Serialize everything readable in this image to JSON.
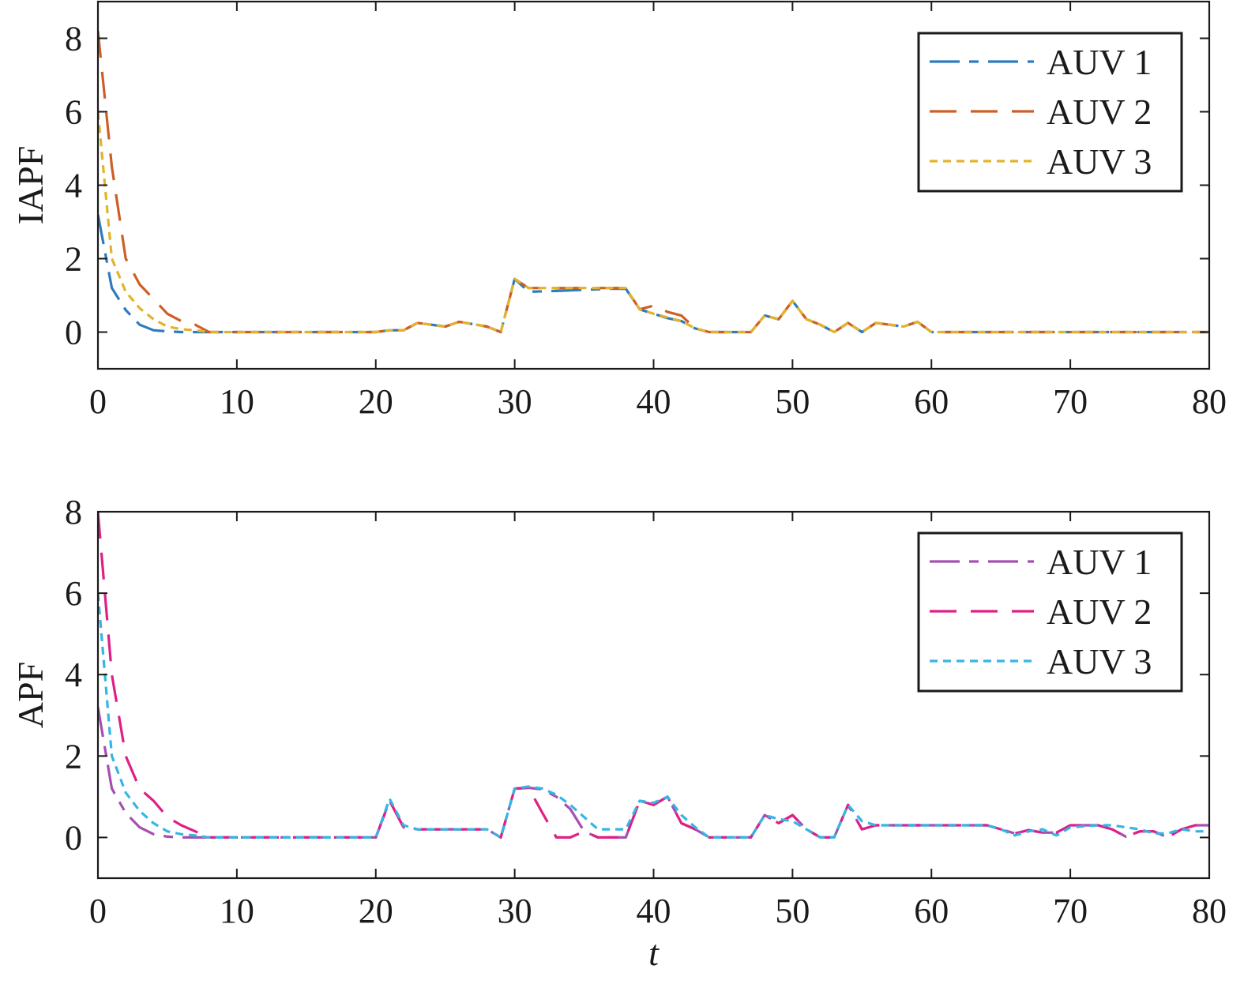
{
  "chart_data": [
    {
      "type": "line",
      "title": "",
      "xlabel": "",
      "ylabel": "IAPF",
      "xlim": [
        0,
        80
      ],
      "ylim": [
        -1,
        9
      ],
      "xticks": [
        0,
        10,
        20,
        30,
        40,
        50,
        60,
        70,
        80
      ],
      "yticks": [
        0,
        2,
        4,
        6,
        8
      ],
      "grid": false,
      "legend_position": "top-right",
      "series": [
        {
          "name": "AUV 1",
          "color": "#2e7bbf",
          "dash": "long-dash-short-dash",
          "x": [
            0,
            1,
            2,
            3,
            4,
            5,
            6,
            7,
            8,
            10,
            15,
            20,
            21,
            22,
            23,
            25,
            26,
            28,
            29,
            30,
            31,
            33,
            35,
            37,
            38,
            39,
            40,
            41,
            42,
            43,
            44,
            45,
            47,
            48,
            49,
            50,
            51,
            52,
            53,
            54,
            55,
            56,
            57,
            58,
            59,
            60,
            65,
            70,
            75,
            80
          ],
          "y": [
            3.2,
            1.2,
            0.6,
            0.2,
            0.05,
            0.02,
            0.0,
            0.0,
            0.0,
            0.0,
            0.0,
            0.0,
            0.05,
            0.05,
            0.25,
            0.15,
            0.28,
            0.15,
            0.0,
            1.45,
            1.1,
            1.12,
            1.15,
            1.18,
            1.18,
            0.62,
            0.5,
            0.38,
            0.3,
            0.1,
            0.0,
            0.0,
            0.0,
            0.45,
            0.35,
            0.85,
            0.35,
            0.2,
            0.0,
            0.25,
            0.0,
            0.25,
            0.2,
            0.15,
            0.28,
            0.0,
            0.0,
            0.0,
            0.0,
            0.0
          ]
        },
        {
          "name": "AUV 2",
          "color": "#cc5f28",
          "dash": "long-dash",
          "x": [
            0,
            1,
            2,
            3,
            4,
            5,
            6,
            7,
            8,
            10,
            15,
            20,
            21,
            22,
            23,
            25,
            26,
            28,
            29,
            30,
            31,
            33,
            35,
            37,
            38,
            39,
            40,
            41,
            42,
            43,
            44,
            45,
            47,
            48,
            49,
            50,
            51,
            52,
            53,
            54,
            55,
            56,
            57,
            58,
            59,
            60,
            65,
            70,
            75,
            80
          ],
          "y": [
            8.2,
            4.5,
            2.0,
            1.3,
            0.9,
            0.5,
            0.3,
            0.2,
            0.0,
            0.0,
            0.0,
            0.0,
            0.05,
            0.05,
            0.25,
            0.15,
            0.28,
            0.15,
            0.0,
            1.45,
            1.2,
            1.2,
            1.2,
            1.2,
            1.2,
            0.62,
            0.72,
            0.55,
            0.45,
            0.1,
            0.0,
            0.0,
            0.0,
            0.45,
            0.35,
            0.85,
            0.35,
            0.2,
            0.0,
            0.25,
            0.0,
            0.25,
            0.2,
            0.15,
            0.28,
            0.0,
            0.0,
            0.0,
            0.0,
            0.0
          ]
        },
        {
          "name": "AUV 3",
          "color": "#e3b32b",
          "dash": "short-dash",
          "x": [
            0,
            1,
            2,
            3,
            4,
            5,
            6,
            7,
            8,
            10,
            15,
            20,
            21,
            22,
            23,
            25,
            26,
            28,
            29,
            30,
            31,
            33,
            35,
            37,
            38,
            39,
            40,
            41,
            42,
            43,
            44,
            45,
            47,
            48,
            49,
            50,
            51,
            52,
            53,
            54,
            55,
            56,
            57,
            58,
            59,
            60,
            65,
            70,
            75,
            80
          ],
          "y": [
            6.0,
            2.0,
            1.1,
            0.65,
            0.35,
            0.15,
            0.08,
            0.05,
            0.0,
            0.0,
            0.0,
            0.0,
            0.05,
            0.05,
            0.25,
            0.15,
            0.28,
            0.15,
            0.0,
            1.45,
            1.2,
            1.2,
            1.2,
            1.2,
            1.2,
            0.62,
            0.5,
            0.4,
            0.3,
            0.1,
            0.0,
            0.0,
            0.0,
            0.45,
            0.35,
            0.85,
            0.35,
            0.2,
            0.0,
            0.25,
            0.0,
            0.25,
            0.2,
            0.15,
            0.28,
            0.0,
            0.0,
            0.0,
            0.0,
            0.0
          ]
        }
      ]
    },
    {
      "type": "line",
      "title": "",
      "xlabel": "t",
      "ylabel": "APF",
      "xlim": [
        0,
        80
      ],
      "ylim": [
        -1,
        8
      ],
      "xticks": [
        0,
        10,
        20,
        30,
        40,
        50,
        60,
        70,
        80
      ],
      "yticks": [
        0,
        2,
        4,
        6,
        8
      ],
      "grid": false,
      "legend_position": "top-right",
      "series": [
        {
          "name": "AUV 1",
          "color": "#a64fb0",
          "dash": "long-dash-short-dash",
          "x": [
            0,
            1,
            2,
            3,
            4,
            5,
            6,
            7,
            8,
            10,
            15,
            20,
            21,
            22,
            23,
            25,
            28,
            29,
            30,
            31,
            32,
            33,
            34,
            35,
            36,
            38,
            39,
            40,
            41,
            42,
            43,
            44,
            45,
            47,
            48,
            49,
            50,
            51,
            52,
            53,
            54,
            55,
            56,
            60,
            64,
            65,
            66,
            67,
            68,
            69,
            70,
            72,
            73,
            74,
            75,
            76,
            77,
            78,
            79,
            80
          ],
          "y": [
            3.2,
            1.2,
            0.6,
            0.25,
            0.08,
            0.02,
            0.0,
            0.0,
            0.0,
            0.0,
            0.0,
            0.0,
            0.9,
            0.25,
            0.2,
            0.2,
            0.2,
            0.0,
            1.2,
            1.22,
            1.18,
            1.0,
            0.7,
            0.15,
            0.0,
            0.0,
            0.9,
            0.8,
            1.0,
            0.35,
            0.2,
            0.0,
            0.0,
            0.0,
            0.55,
            0.35,
            0.55,
            0.2,
            0.0,
            0.0,
            0.8,
            0.2,
            0.3,
            0.3,
            0.3,
            0.2,
            0.1,
            0.18,
            0.12,
            0.12,
            0.3,
            0.3,
            0.2,
            0.02,
            0.15,
            0.15,
            0.0,
            0.2,
            0.3,
            0.3
          ]
        },
        {
          "name": "AUV 2",
          "color": "#df1f86",
          "dash": "long-dash",
          "x": [
            0,
            1,
            2,
            3,
            4,
            5,
            6,
            7,
            8,
            10,
            15,
            20,
            21,
            22,
            23,
            25,
            28,
            29,
            30,
            31,
            32,
            33,
            34,
            35,
            36,
            38,
            39,
            40,
            41,
            42,
            43,
            44,
            45,
            47,
            48,
            49,
            50,
            51,
            52,
            53,
            54,
            55,
            56,
            60,
            64,
            65,
            66,
            67,
            68,
            69,
            70,
            72,
            73,
            74,
            75,
            76,
            77,
            78,
            79,
            80
          ],
          "y": [
            8.0,
            4.0,
            2.0,
            1.2,
            0.9,
            0.5,
            0.3,
            0.15,
            0.0,
            0.0,
            0.0,
            0.0,
            0.9,
            0.25,
            0.2,
            0.2,
            0.2,
            0.0,
            1.2,
            1.22,
            0.6,
            0.0,
            0.0,
            0.15,
            0.0,
            0.0,
            0.9,
            0.8,
            1.0,
            0.35,
            0.2,
            0.0,
            0.0,
            0.0,
            0.55,
            0.35,
            0.55,
            0.2,
            0.0,
            0.0,
            0.8,
            0.2,
            0.3,
            0.3,
            0.3,
            0.2,
            0.1,
            0.18,
            0.12,
            0.12,
            0.3,
            0.3,
            0.2,
            0.02,
            0.15,
            0.15,
            0.0,
            0.2,
            0.3,
            0.3
          ]
        },
        {
          "name": "AUV 3",
          "color": "#35b5e5",
          "dash": "short-dash",
          "x": [
            0,
            1,
            2,
            3,
            4,
            5,
            6,
            7,
            8,
            10,
            15,
            20,
            21,
            22,
            23,
            25,
            28,
            29,
            30,
            31,
            32,
            33,
            34,
            35,
            36,
            38,
            39,
            40,
            41,
            42,
            43,
            44,
            45,
            47,
            48,
            49,
            50,
            51,
            52,
            53,
            54,
            55,
            56,
            60,
            64,
            65,
            66,
            67,
            68,
            69,
            70,
            72,
            73,
            74,
            75,
            76,
            77,
            78,
            79,
            80
          ],
          "y": [
            6.0,
            2.0,
            1.1,
            0.65,
            0.35,
            0.15,
            0.08,
            0.05,
            0.0,
            0.0,
            0.0,
            0.0,
            0.95,
            0.3,
            0.2,
            0.2,
            0.2,
            0.0,
            1.2,
            1.25,
            1.2,
            1.05,
            0.8,
            0.5,
            0.2,
            0.2,
            0.9,
            0.85,
            1.0,
            0.55,
            0.25,
            0.0,
            0.0,
            0.0,
            0.55,
            0.45,
            0.4,
            0.2,
            0.0,
            0.0,
            0.8,
            0.4,
            0.3,
            0.3,
            0.3,
            0.2,
            0.05,
            0.15,
            0.2,
            0.05,
            0.25,
            0.3,
            0.3,
            0.25,
            0.2,
            0.1,
            0.1,
            0.2,
            0.15,
            0.15
          ]
        }
      ]
    }
  ]
}
